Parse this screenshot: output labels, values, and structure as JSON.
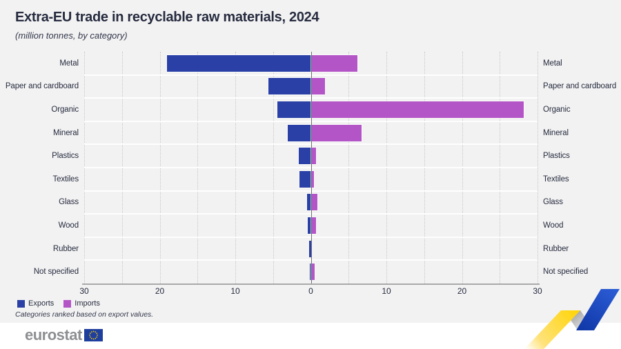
{
  "chart_data": {
    "type": "bar",
    "variant": "diverging-horizontal",
    "title": "Extra-EU trade in recyclable raw materials, 2024",
    "subtitle": "(million tonnes, by category)",
    "categories": [
      "Metal",
      "Paper and cardboard",
      "Organic",
      "Mineral",
      "Plastics",
      "Textiles",
      "Glass",
      "Wood",
      "Rubber",
      "Not specified"
    ],
    "series": [
      {
        "name": "Exports",
        "side": "left",
        "color": "#2a40a6",
        "values": [
          19.0,
          5.6,
          4.4,
          3.1,
          1.6,
          1.5,
          0.5,
          0.4,
          0.25,
          0.15
        ]
      },
      {
        "name": "Imports",
        "side": "right",
        "color": "#b455c7",
        "values": [
          6.2,
          1.9,
          28.2,
          6.7,
          0.7,
          0.45,
          0.9,
          0.7,
          0.05,
          0.5
        ]
      }
    ],
    "xlim": [
      -30,
      30
    ],
    "x_tick_values": [
      -30,
      -20,
      -10,
      0,
      10,
      20,
      30
    ],
    "x_tick_labels": [
      "30",
      "20",
      "10",
      "0",
      "10",
      "20",
      "30"
    ],
    "grid_step": 5,
    "grid": true,
    "legend_position": "bottom-left",
    "note": "Categories ranked based on export values."
  },
  "footer": {
    "logo_text": "eurostat"
  },
  "colors": {
    "exports": "#2a40a6",
    "imports": "#b455c7",
    "background": "#f2f2f2",
    "text": "#262b3f",
    "eu_flag_blue": "#1e3f9e",
    "star_yellow": "#ffcc00",
    "ribbon_yellow": "#ffd617",
    "ribbon_silver": "#c0c0c0",
    "ribbon_blue": "#1d4dc6"
  }
}
